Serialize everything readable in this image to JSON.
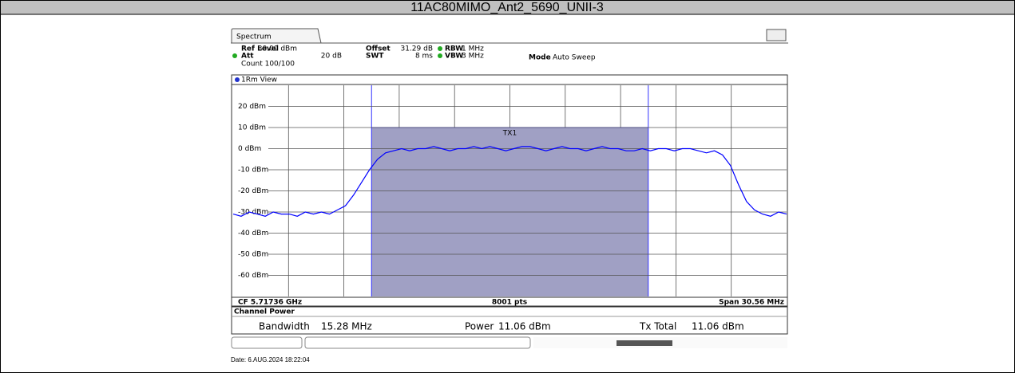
{
  "header": {
    "title": "11AC80MIMO_Ant2_5690_UNII-3"
  },
  "instrument": {
    "tab": "Spectrum",
    "ref_level_label": "Ref Level",
    "ref_level": "30.00 dBm",
    "offset_label": "Offset",
    "offset": "31.29 dB",
    "rbw_label": "RBW",
    "rbw": "1 MHz",
    "att_label": "Att",
    "att": "20 dB",
    "swt_label": "SWT",
    "swt": "8 ms",
    "vbw_label": "VBW",
    "vbw": "3 MHz",
    "mode_label": "Mode",
    "mode": "Auto Sweep",
    "count": "Count 100/100",
    "view": "1Rm View",
    "cf": "CF 5.71736 GHz",
    "points": "8001 pts",
    "span": "Span 30.56 MHz",
    "channel_power": {
      "title": "Channel Power",
      "bandwidth_label": "Bandwidth",
      "bandwidth": "15.28 MHz",
      "power_label": "Power",
      "power": "11.06 dBm",
      "tx_total_label": "Tx Total",
      "tx_total": "11.06 dBm"
    },
    "date": "Date: 6.AUG.2024  18:22:04"
  },
  "chart_data": {
    "type": "line",
    "channel_label": "TX1",
    "channel_level": 10,
    "ylim": [
      -70,
      30
    ],
    "yticks": [
      {
        "value": 20,
        "label": "20 dBm"
      },
      {
        "value": 10,
        "label": "10 dBm"
      },
      {
        "value": 0,
        "label": "0 dBm"
      },
      {
        "value": -10,
        "label": "-10 dBm"
      },
      {
        "value": -20,
        "label": "-20 dBm"
      },
      {
        "value": -30,
        "label": "-30 dBm"
      },
      {
        "value": -40,
        "label": "-40 dBm"
      },
      {
        "value": -50,
        "label": "-50 dBm"
      },
      {
        "value": -60,
        "label": "-60 dBm"
      }
    ],
    "grid": true,
    "series": [
      {
        "color": "#0000ff",
        "values": [
          -31,
          -32,
          -30,
          -31,
          -32,
          -30,
          -31,
          -31,
          -32,
          -30,
          -31,
          -30,
          -31,
          -29,
          -27,
          -22,
          -16,
          -10,
          -5,
          -2,
          -1,
          0,
          -1,
          0,
          0,
          1,
          0,
          -1,
          0,
          0,
          1,
          0,
          1,
          0,
          -1,
          0,
          1,
          1,
          0,
          -1,
          0,
          1,
          0,
          0,
          -1,
          0,
          1,
          0,
          0,
          -1,
          -1,
          0,
          -1,
          0,
          0,
          -1,
          0,
          0,
          -1,
          -2,
          -1,
          -3,
          -8,
          -17,
          -25,
          -29,
          -31,
          -32,
          -30,
          -31
        ]
      }
    ]
  }
}
